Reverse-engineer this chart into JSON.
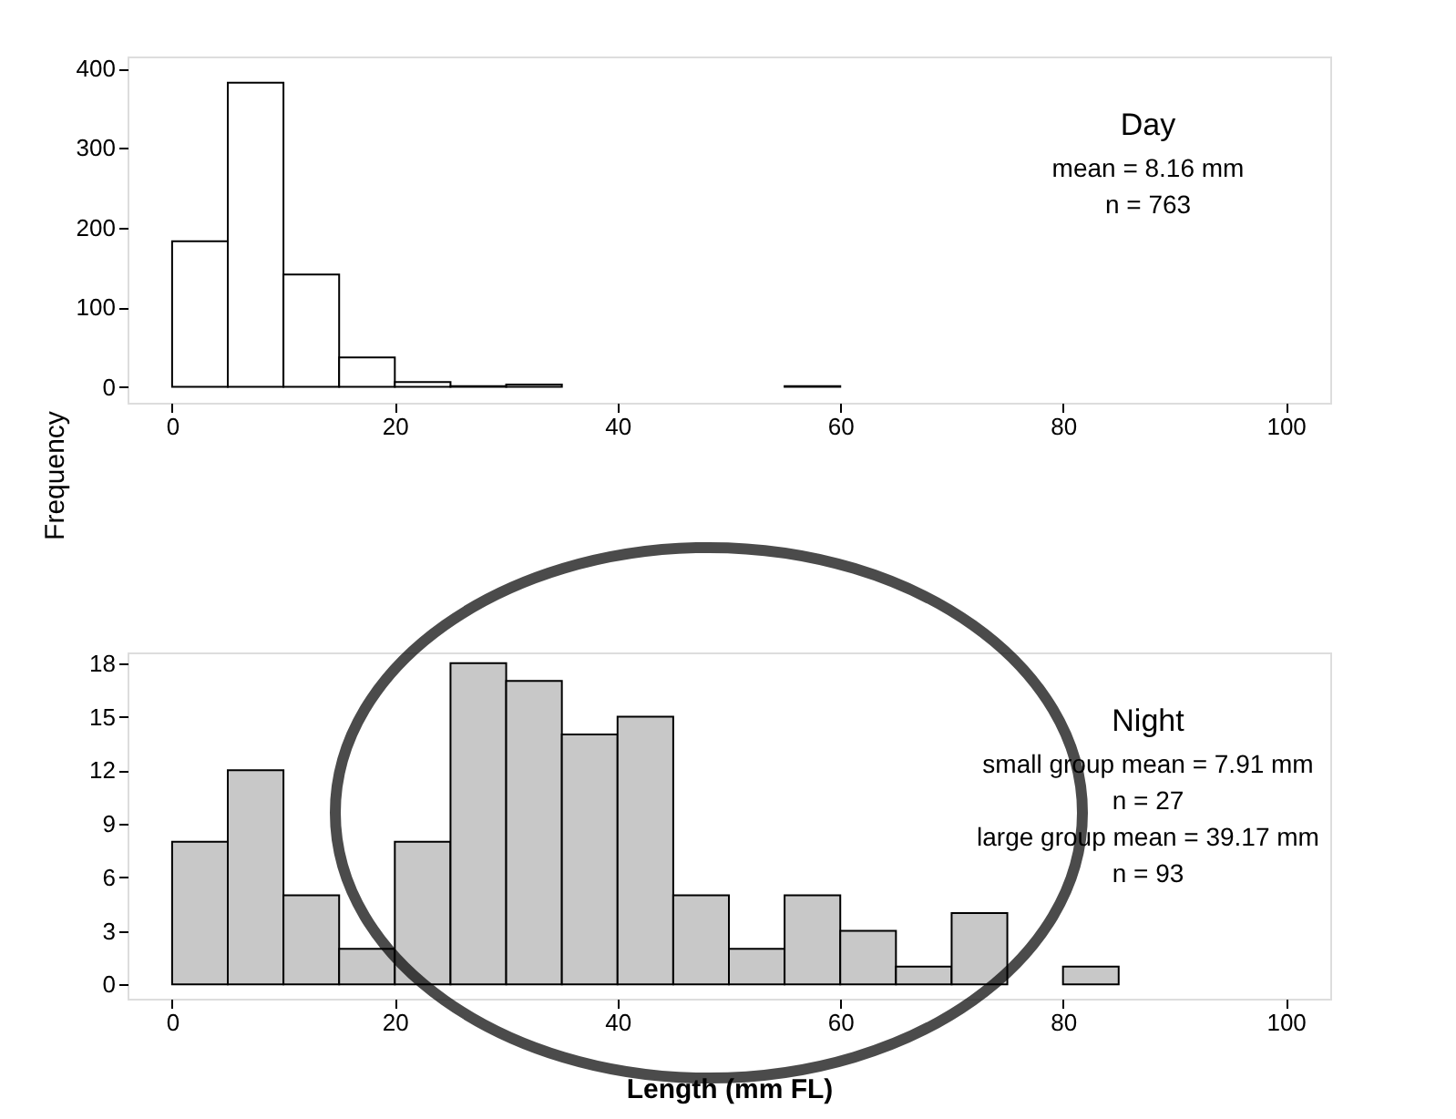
{
  "chart_data": [
    {
      "type": "histogram",
      "title": "Day",
      "ylabel": "Frequency",
      "annotations": [
        "mean = 8.16 mm",
        "n = 763"
      ],
      "bins": [
        0,
        5,
        10,
        15,
        20,
        25,
        30,
        35,
        40,
        45,
        50,
        55,
        60
      ],
      "values": [
        183,
        382,
        141,
        37,
        6,
        1,
        3,
        0,
        0,
        0,
        0,
        1
      ],
      "color": "#ffffff",
      "xlim": [
        -4,
        104
      ],
      "xticks": [
        0,
        20,
        40,
        60,
        80,
        100
      ],
      "ylim": [
        -20,
        415
      ],
      "yticks": [
        0,
        100,
        200,
        300,
        400
      ],
      "grid": false
    },
    {
      "type": "histogram",
      "title": "Night",
      "xlabel": "Length (mm FL)",
      "annotations": [
        "small group mean = 7.91 mm",
        "n = 27",
        "large group mean = 39.17 mm",
        "n = 93"
      ],
      "bins": [
        0,
        5,
        10,
        15,
        20,
        25,
        30,
        35,
        40,
        45,
        50,
        55,
        60,
        65,
        70,
        75,
        80,
        85
      ],
      "values": [
        8,
        12,
        5,
        2,
        8,
        18,
        17,
        14,
        15,
        5,
        2,
        5,
        3,
        1,
        4,
        0,
        1
      ],
      "color": "#c8c8c8",
      "xlim": [
        -4,
        104
      ],
      "xticks": [
        0,
        20,
        40,
        60,
        80,
        100
      ],
      "ylim": [
        -0.8,
        18.6
      ],
      "yticks": [
        0,
        3,
        6,
        9,
        12,
        15,
        18
      ],
      "grid": false
    }
  ]
}
